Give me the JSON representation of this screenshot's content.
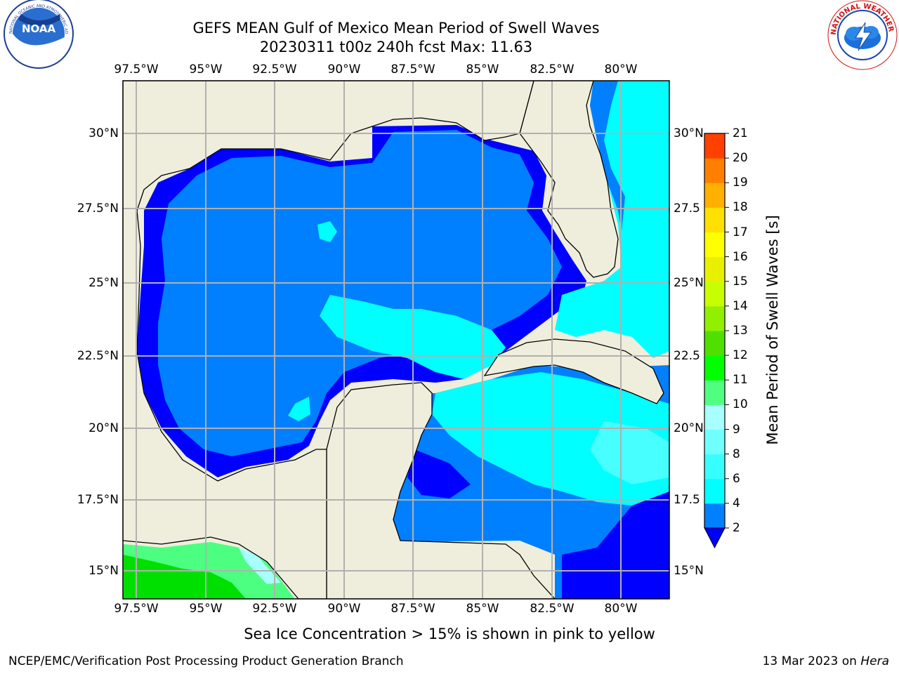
{
  "title": {
    "line1": "GEFS MEAN Gulf of Mexico Mean Period of Swell Waves",
    "line2": "20230311 t00z 240h fcst   Max: 11.63"
  },
  "map": {
    "lon_ticks": [
      "97.5°W",
      "95°W",
      "92.5°W",
      "90°W",
      "87.5°W",
      "85°W",
      "82.5°W",
      "80°W"
    ],
    "lat_ticks_left": [
      "30°N",
      "27.5°N",
      "25°N",
      "22.5°N",
      "20°N",
      "17.5°N",
      "15°N"
    ],
    "lat_ticks_right": [
      "30°N",
      "27.5",
      "25°N",
      "22.5",
      "20°N",
      "17.5",
      "15°N"
    ],
    "colors": {
      "land": "#efeedc",
      "water_dark": "#0000ff",
      "water_mid": "#0080ff",
      "water_light": "#00ffff",
      "water_pale": "#48ffff",
      "green_light": "#4dff80",
      "green": "#00e000",
      "grid": "#b0b0b0"
    }
  },
  "colorbar": {
    "label": "Mean Period of Swell Waves [s]",
    "ticks": [
      "2",
      "4",
      "6",
      "8",
      "9",
      "10",
      "11",
      "12",
      "13",
      "14",
      "15",
      "16",
      "17",
      "18",
      "19",
      "20",
      "21"
    ],
    "colors": [
      "#0080ff",
      "#00ffff",
      "#38ffff",
      "#70ffff",
      "#a8ffff",
      "#50ff80",
      "#00ff00",
      "#50e000",
      "#90f000",
      "#c8ff00",
      "#e8f000",
      "#ffff00",
      "#ffe000",
      "#ffb000",
      "#ff8000",
      "#ff4000",
      "#ff0000"
    ],
    "under_color": "#0000ff"
  },
  "footnote": "Sea Ice Concentration > 15% is shown in pink to yellow",
  "credits": {
    "left": "NCEP/EMC/Verification Post Processing Product Generation Branch",
    "right_date": "13 Mar 2023 on",
    "right_host": "Hera"
  },
  "logos": {
    "noaa_text": "NOAA",
    "noaa_ring": "NATIONAL OCEANIC AND ATMOSPHERIC ADMINISTRATION · U.S. DEPARTMENT OF COMMERCE",
    "nws_ring": "NATIONAL WEATHER SERVICE"
  }
}
